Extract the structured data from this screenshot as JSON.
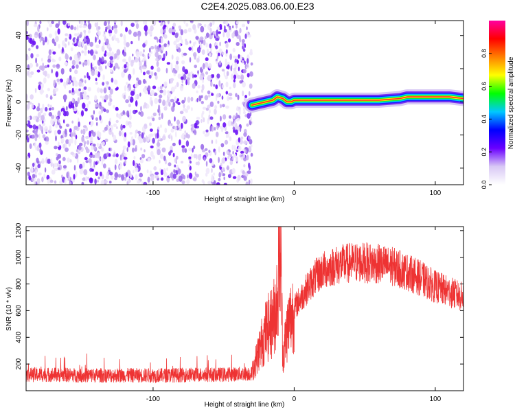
{
  "title": "C2E4.2025.083.06.00.E23",
  "chart_data": [
    {
      "type": "heatmap",
      "xlabel": "Height of straight line (km)",
      "ylabel": "Frequency (Hz)",
      "xlim": [
        -190,
        120
      ],
      "ylim": [
        -50,
        49
      ],
      "xticks": [
        "-100",
        "0",
        "100"
      ],
      "xtick_values": [
        -100,
        0,
        100
      ],
      "yticks": [
        "-40",
        "-20",
        "0",
        "20",
        "40"
      ],
      "ytick_values": [
        -40,
        -20,
        0,
        20,
        40
      ],
      "noise_region_x": [
        -190,
        -30
      ],
      "signal_region_x": [
        -30,
        120
      ],
      "signal_track": {
        "x": [
          -30,
          -25,
          -20,
          -15,
          -12,
          -8,
          -5,
          -2,
          0,
          5,
          20,
          40,
          60,
          75,
          80,
          90,
          100,
          110,
          120
        ],
        "freq": [
          -2,
          -1,
          0,
          1,
          3,
          2,
          0,
          0,
          1,
          1,
          1,
          1,
          1,
          2,
          3,
          3,
          3,
          3,
          2
        ]
      },
      "colorbar": {
        "label": "Normalized spectral amplitude",
        "range": [
          0.0,
          1.0
        ],
        "ticks": [
          "0.0",
          "0.2",
          "0.4",
          "0.6",
          "0.8"
        ],
        "tick_values": [
          0.0,
          0.2,
          0.4,
          0.6,
          0.8
        ],
        "colors": [
          "#ffffff",
          "#d8c8f5",
          "#6a00ff",
          "#0000ff",
          "#00c8ff",
          "#00ff00",
          "#ffff00",
          "#ff8000",
          "#ff0000",
          "#ff00a0"
        ]
      }
    },
    {
      "type": "line",
      "xlabel": "Height of straight line (km)",
      "ylabel": "SNR (10 * v/v)",
      "xlim": [
        -190,
        120
      ],
      "ylim": [
        0,
        1230
      ],
      "xticks": [
        "-100",
        "0",
        "100"
      ],
      "xtick_values": [
        -100,
        0,
        100
      ],
      "yticks": [
        "200",
        "400",
        "600",
        "800",
        "1000",
        "1200"
      ],
      "ytick_values": [
        200,
        400,
        600,
        800,
        1000,
        1200
      ],
      "color": "#ee3333",
      "series": [
        {
          "x": [
            -190,
            -170,
            -150,
            -130,
            -110,
            -90,
            -70,
            -50,
            -30,
            -25,
            -20,
            -15,
            -12,
            -10,
            -8,
            -6,
            -4,
            -2,
            0,
            5,
            10,
            15,
            20,
            30,
            40,
            50,
            60,
            70,
            80,
            90,
            100,
            110,
            120
          ],
          "values": [
            120,
            120,
            115,
            115,
            115,
            115,
            120,
            120,
            130,
            300,
            450,
            520,
            700,
            1230,
            250,
            400,
            500,
            560,
            620,
            700,
            780,
            850,
            900,
            940,
            960,
            960,
            950,
            930,
            890,
            840,
            780,
            740,
            700
          ]
        }
      ]
    }
  ]
}
